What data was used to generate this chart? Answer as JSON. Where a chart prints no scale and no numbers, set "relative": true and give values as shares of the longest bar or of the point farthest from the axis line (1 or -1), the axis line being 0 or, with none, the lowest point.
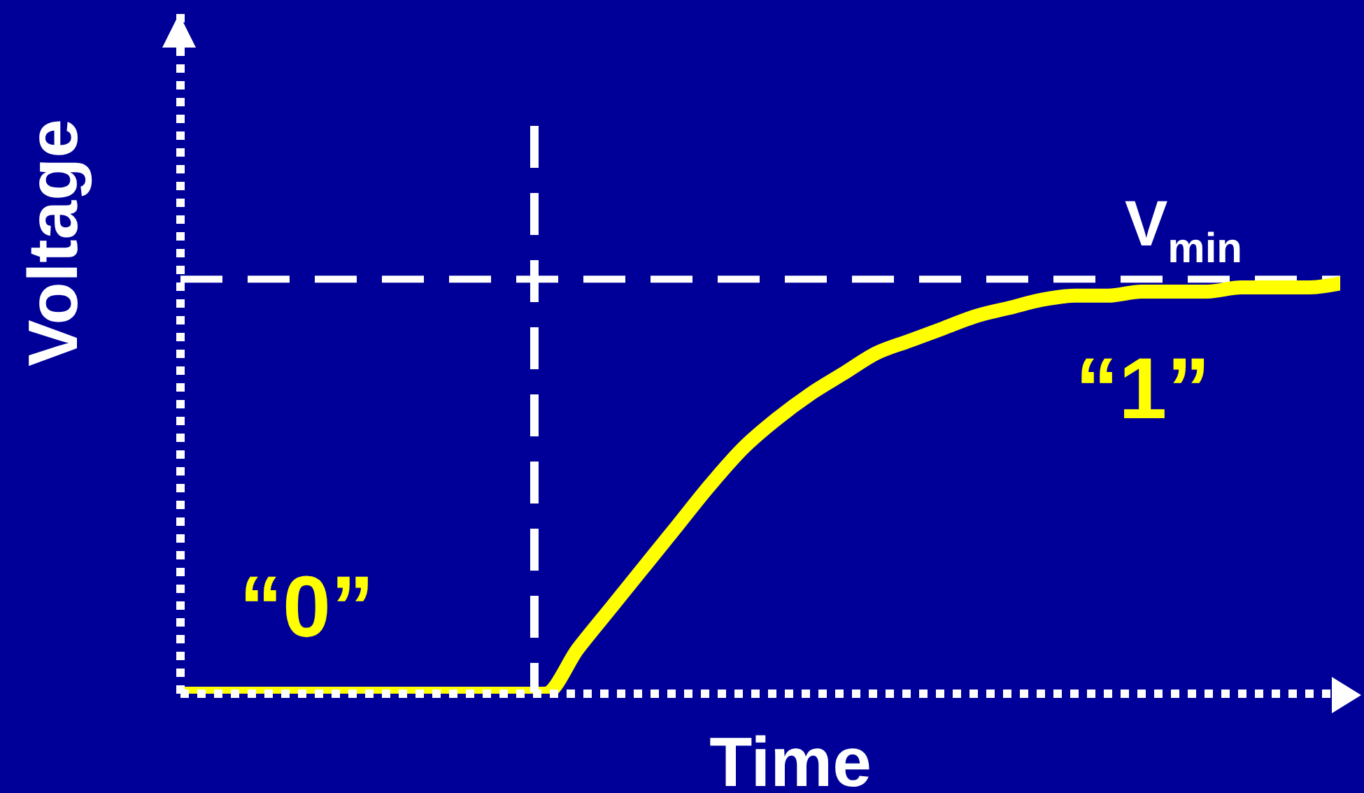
{
  "chart_data": {
    "type": "line",
    "relative": true,
    "xlabel": "Time",
    "ylabel": "Voltage",
    "categories": [
      null,
      null,
      null,
      null,
      null,
      null,
      null,
      null,
      null,
      null,
      null,
      null,
      null,
      null,
      null,
      null,
      null,
      null,
      null,
      null,
      null,
      null,
      null,
      null,
      null,
      null,
      null,
      null,
      null,
      null,
      null,
      null,
      null,
      null,
      null,
      null
    ],
    "series": [
      {
        "color": "#ffff00",
        "values": [
          0,
          0,
          0,
          0,
          0,
          0,
          0,
          0,
          0,
          0,
          0,
          0,
          0.11,
          0.21,
          0.31,
          0.41,
          0.51,
          0.6,
          0.67,
          0.73,
          0.78,
          0.83,
          0.86,
          0.89,
          0.92,
          0.94,
          0.96,
          0.97,
          0.97,
          0.98,
          0.98,
          0.98,
          0.99,
          0.99,
          0.99,
          1
        ]
      }
    ],
    "ref_lines": [
      {
        "axis": "y",
        "value": 1.01,
        "label": "V$_{min}$",
        "color": "#ffffff",
        "line_style": "dashed"
      }
    ],
    "annotations": [
      "“0”",
      "“1”"
    ]
  }
}
